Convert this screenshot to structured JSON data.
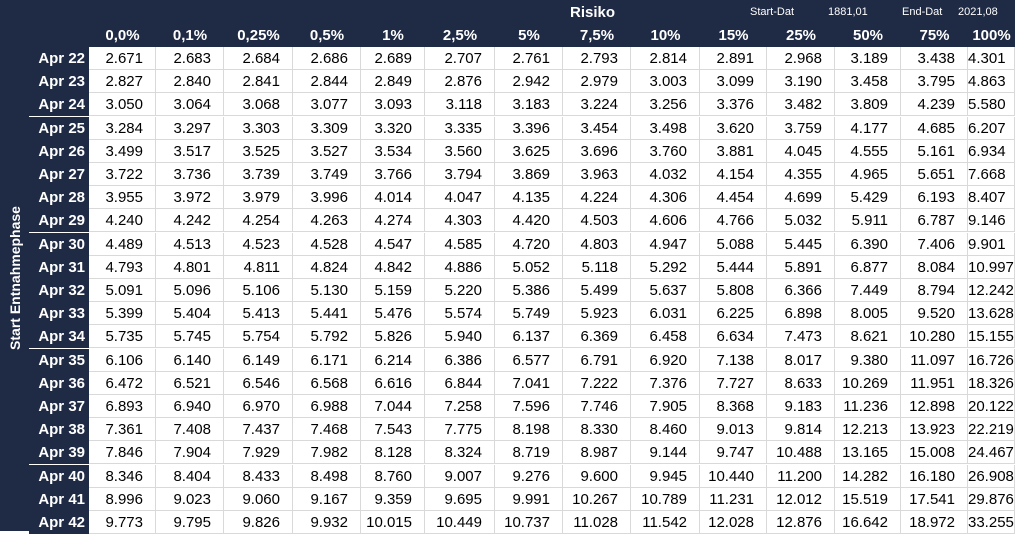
{
  "top": {
    "title": "Risiko",
    "start_label": "Start-Dat",
    "start_value": "1881,01",
    "end_label": "End-Dat",
    "end_value": "2021,08"
  },
  "side_label": "Start Entnahmephase",
  "columns": [
    "0,0%",
    "0,1%",
    "0,25%",
    "0,5%",
    "1%",
    "2,5%",
    "5%",
    "7,5%",
    "10%",
    "15%",
    "25%",
    "50%",
    "75%",
    "100%"
  ],
  "rows": [
    {
      "label": "Apr 22",
      "values": [
        "2.671",
        "2.683",
        "2.684",
        "2.686",
        "2.689",
        "2.707",
        "2.761",
        "2.793",
        "2.814",
        "2.891",
        "2.968",
        "3.189",
        "3.438",
        "4.301"
      ]
    },
    {
      "label": "Apr 23",
      "values": [
        "2.827",
        "2.840",
        "2.841",
        "2.844",
        "2.849",
        "2.876",
        "2.942",
        "2.979",
        "3.003",
        "3.099",
        "3.190",
        "3.458",
        "3.795",
        "4.863"
      ]
    },
    {
      "label": "Apr 24",
      "values": [
        "3.050",
        "3.064",
        "3.068",
        "3.077",
        "3.093",
        "3.118",
        "3.183",
        "3.224",
        "3.256",
        "3.376",
        "3.482",
        "3.809",
        "4.239",
        "5.580"
      ]
    },
    {
      "label": "Apr 25",
      "values": [
        "3.284",
        "3.297",
        "3.303",
        "3.309",
        "3.320",
        "3.335",
        "3.396",
        "3.454",
        "3.498",
        "3.620",
        "3.759",
        "4.177",
        "4.685",
        "6.207"
      ]
    },
    {
      "label": "Apr 26",
      "values": [
        "3.499",
        "3.517",
        "3.525",
        "3.527",
        "3.534",
        "3.560",
        "3.625",
        "3.696",
        "3.760",
        "3.881",
        "4.045",
        "4.555",
        "5.161",
        "6.934"
      ]
    },
    {
      "label": "Apr 27",
      "values": [
        "3.722",
        "3.736",
        "3.739",
        "3.749",
        "3.766",
        "3.794",
        "3.869",
        "3.963",
        "4.032",
        "4.154",
        "4.355",
        "4.965",
        "5.651",
        "7.668"
      ]
    },
    {
      "label": "Apr 28",
      "values": [
        "3.955",
        "3.972",
        "3.979",
        "3.996",
        "4.014",
        "4.047",
        "4.135",
        "4.224",
        "4.306",
        "4.454",
        "4.699",
        "5.429",
        "6.193",
        "8.407"
      ]
    },
    {
      "label": "Apr 29",
      "values": [
        "4.240",
        "4.242",
        "4.254",
        "4.263",
        "4.274",
        "4.303",
        "4.420",
        "4.503",
        "4.606",
        "4.766",
        "5.032",
        "5.911",
        "6.787",
        "9.146"
      ]
    },
    {
      "label": "Apr 30",
      "values": [
        "4.489",
        "4.513",
        "4.523",
        "4.528",
        "4.547",
        "4.585",
        "4.720",
        "4.803",
        "4.947",
        "5.088",
        "5.445",
        "6.390",
        "7.406",
        "9.901"
      ]
    },
    {
      "label": "Apr 31",
      "values": [
        "4.793",
        "4.801",
        "4.811",
        "4.824",
        "4.842",
        "4.886",
        "5.052",
        "5.118",
        "5.292",
        "5.444",
        "5.891",
        "6.877",
        "8.084",
        "10.997"
      ]
    },
    {
      "label": "Apr 32",
      "values": [
        "5.091",
        "5.096",
        "5.106",
        "5.130",
        "5.159",
        "5.220",
        "5.386",
        "5.499",
        "5.637",
        "5.808",
        "6.366",
        "7.449",
        "8.794",
        "12.242"
      ]
    },
    {
      "label": "Apr 33",
      "values": [
        "5.399",
        "5.404",
        "5.413",
        "5.441",
        "5.476",
        "5.574",
        "5.749",
        "5.923",
        "6.031",
        "6.225",
        "6.898",
        "8.005",
        "9.520",
        "13.628"
      ]
    },
    {
      "label": "Apr 34",
      "values": [
        "5.735",
        "5.745",
        "5.754",
        "5.792",
        "5.826",
        "5.940",
        "6.137",
        "6.369",
        "6.458",
        "6.634",
        "7.473",
        "8.621",
        "10.280",
        "15.155"
      ]
    },
    {
      "label": "Apr 35",
      "values": [
        "6.106",
        "6.140",
        "6.149",
        "6.171",
        "6.214",
        "6.386",
        "6.577",
        "6.791",
        "6.920",
        "7.138",
        "8.017",
        "9.380",
        "11.097",
        "16.726"
      ]
    },
    {
      "label": "Apr 36",
      "values": [
        "6.472",
        "6.521",
        "6.546",
        "6.568",
        "6.616",
        "6.844",
        "7.041",
        "7.222",
        "7.376",
        "7.727",
        "8.633",
        "10.269",
        "11.951",
        "18.326"
      ]
    },
    {
      "label": "Apr 37",
      "values": [
        "6.893",
        "6.940",
        "6.970",
        "6.988",
        "7.044",
        "7.258",
        "7.596",
        "7.746",
        "7.905",
        "8.368",
        "9.183",
        "11.236",
        "12.898",
        "20.122"
      ]
    },
    {
      "label": "Apr 38",
      "values": [
        "7.361",
        "7.408",
        "7.437",
        "7.468",
        "7.543",
        "7.775",
        "8.198",
        "8.330",
        "8.460",
        "9.013",
        "9.814",
        "12.213",
        "13.923",
        "22.219"
      ]
    },
    {
      "label": "Apr 39",
      "values": [
        "7.846",
        "7.904",
        "7.929",
        "7.982",
        "8.128",
        "8.324",
        "8.719",
        "8.987",
        "9.144",
        "9.747",
        "10.488",
        "13.165",
        "15.008",
        "24.467"
      ]
    },
    {
      "label": "Apr 40",
      "values": [
        "8.346",
        "8.404",
        "8.433",
        "8.498",
        "8.760",
        "9.007",
        "9.276",
        "9.600",
        "9.945",
        "10.440",
        "11.200",
        "14.282",
        "16.180",
        "26.908"
      ]
    },
    {
      "label": "Apr 41",
      "values": [
        "8.996",
        "9.023",
        "9.060",
        "9.167",
        "9.359",
        "9.695",
        "9.991",
        "10.267",
        "10.789",
        "11.231",
        "12.012",
        "15.519",
        "17.541",
        "29.876"
      ]
    },
    {
      "label": "Apr 42",
      "values": [
        "9.773",
        "9.795",
        "9.826",
        "9.932",
        "10.015",
        "10.449",
        "10.737",
        "11.028",
        "11.542",
        "12.028",
        "12.876",
        "16.642",
        "18.972",
        "33.255"
      ]
    }
  ]
}
